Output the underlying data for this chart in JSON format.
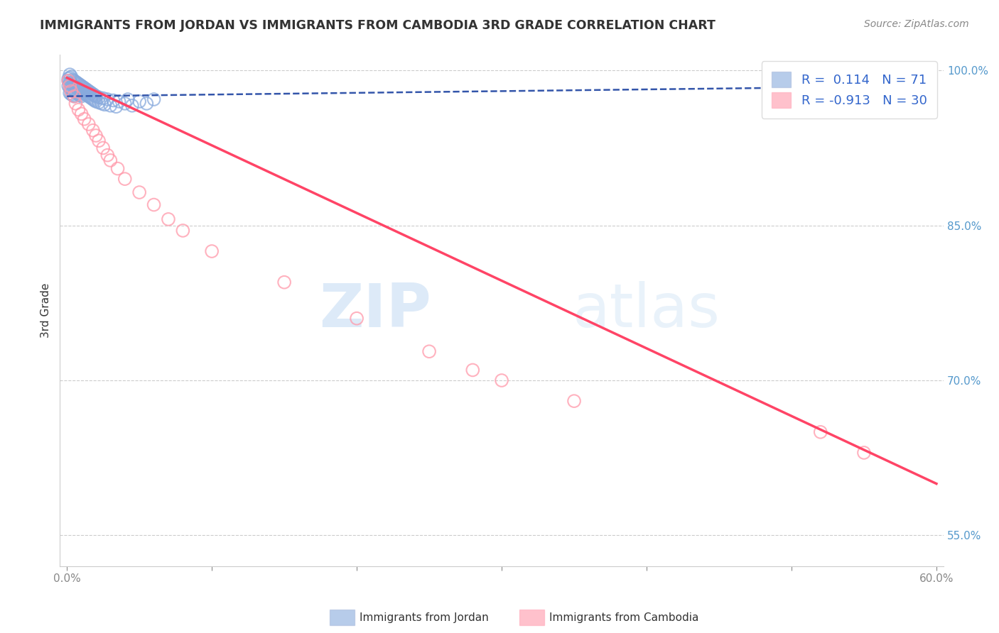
{
  "title": "IMMIGRANTS FROM JORDAN VS IMMIGRANTS FROM CAMBODIA 3RD GRADE CORRELATION CHART",
  "source": "Source: ZipAtlas.com",
  "xlabel_jordan": "Immigrants from Jordan",
  "xlabel_cambodia": "Immigrants from Cambodia",
  "ylabel": "3rd Grade",
  "watermark_zip": "ZIP",
  "watermark_atlas": "atlas",
  "jordan_R": 0.114,
  "jordan_N": 71,
  "cambodia_R": -0.913,
  "cambodia_N": 30,
  "jordan_color": "#88AADD",
  "cambodia_color": "#FF99AA",
  "jordan_trend_color": "#3355AA",
  "cambodia_trend_color": "#FF4466",
  "background_color": "#FFFFFF",
  "xlim": [
    -0.005,
    0.605
  ],
  "ylim": [
    0.52,
    1.015
  ],
  "ytick_vals": [
    0.55,
    0.7,
    0.85,
    1.0
  ],
  "ytick_labels": [
    "55.0%",
    "70.0%",
    "85.0%",
    "100.0%"
  ],
  "xtick_vals": [
    0.0,
    0.1,
    0.2,
    0.3,
    0.4,
    0.5,
    0.6
  ],
  "jordan_x": [
    0.001,
    0.001,
    0.001,
    0.002,
    0.002,
    0.002,
    0.002,
    0.002,
    0.003,
    0.003,
    0.003,
    0.003,
    0.004,
    0.004,
    0.004,
    0.004,
    0.005,
    0.005,
    0.005,
    0.005,
    0.006,
    0.006,
    0.006,
    0.007,
    0.007,
    0.007,
    0.008,
    0.008,
    0.008,
    0.009,
    0.009,
    0.009,
    0.01,
    0.01,
    0.01,
    0.011,
    0.011,
    0.012,
    0.012,
    0.013,
    0.013,
    0.014,
    0.014,
    0.015,
    0.015,
    0.016,
    0.016,
    0.017,
    0.017,
    0.018,
    0.018,
    0.019,
    0.019,
    0.02,
    0.02,
    0.022,
    0.022,
    0.024,
    0.025,
    0.026,
    0.028,
    0.03,
    0.032,
    0.034,
    0.036,
    0.04,
    0.042,
    0.045,
    0.05,
    0.055,
    0.06
  ],
  "jordan_y": [
    0.99,
    0.985,
    0.992,
    0.988,
    0.983,
    0.978,
    0.993,
    0.996,
    0.987,
    0.982,
    0.977,
    0.994,
    0.986,
    0.981,
    0.976,
    0.991,
    0.985,
    0.98,
    0.975,
    0.99,
    0.984,
    0.979,
    0.989,
    0.983,
    0.978,
    0.988,
    0.982,
    0.977,
    0.987,
    0.981,
    0.976,
    0.986,
    0.98,
    0.975,
    0.985,
    0.979,
    0.984,
    0.978,
    0.983,
    0.977,
    0.982,
    0.976,
    0.981,
    0.975,
    0.98,
    0.974,
    0.979,
    0.973,
    0.978,
    0.972,
    0.977,
    0.971,
    0.976,
    0.97,
    0.975,
    0.969,
    0.974,
    0.968,
    0.973,
    0.967,
    0.972,
    0.966,
    0.971,
    0.965,
    0.97,
    0.968,
    0.972,
    0.966,
    0.97,
    0.968,
    0.972
  ],
  "cambodia_x": [
    0.001,
    0.002,
    0.003,
    0.005,
    0.006,
    0.008,
    0.01,
    0.012,
    0.015,
    0.018,
    0.02,
    0.022,
    0.025,
    0.028,
    0.03,
    0.035,
    0.04,
    0.05,
    0.06,
    0.07,
    0.08,
    0.1,
    0.15,
    0.2,
    0.25,
    0.28,
    0.3,
    0.35,
    0.52,
    0.55
  ],
  "cambodia_y": [
    0.99,
    0.985,
    0.98,
    0.975,
    0.968,
    0.962,
    0.958,
    0.953,
    0.948,
    0.942,
    0.937,
    0.932,
    0.925,
    0.918,
    0.913,
    0.905,
    0.895,
    0.882,
    0.87,
    0.856,
    0.845,
    0.825,
    0.795,
    0.76,
    0.728,
    0.71,
    0.7,
    0.68,
    0.65,
    0.63
  ],
  "jordan_trend_x": [
    0.0,
    0.6
  ],
  "jordan_trend_y": [
    0.975,
    0.985
  ],
  "cambodia_trend_x": [
    0.0,
    0.6
  ],
  "cambodia_trend_y": [
    0.993,
    0.6
  ]
}
